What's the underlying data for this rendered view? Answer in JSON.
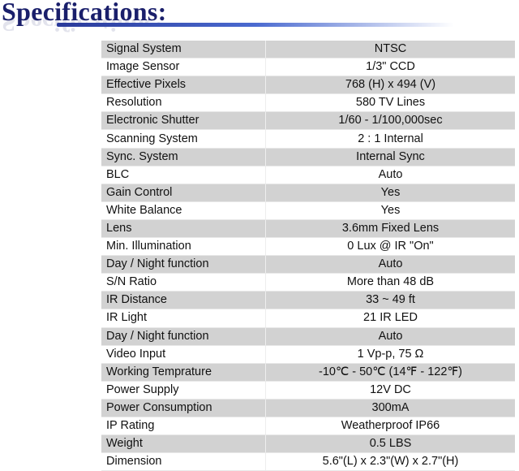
{
  "title": "Specifications:",
  "rows": [
    [
      "Signal System",
      "NTSC"
    ],
    [
      "Image Sensor",
      "1/3\" CCD"
    ],
    [
      "Effective Pixels",
      "768 (H) x 494 (V)"
    ],
    [
      "Resolution",
      "580 TV Lines"
    ],
    [
      "Electronic Shutter",
      "1/60 - 1/100,000sec"
    ],
    [
      "Scanning System",
      "2 : 1 Internal"
    ],
    [
      "Sync. System",
      "Internal Sync"
    ],
    [
      "BLC",
      "Auto"
    ],
    [
      "Gain Control",
      "Yes"
    ],
    [
      "White Balance",
      "Yes"
    ],
    [
      "Lens",
      "3.6mm Fixed Lens"
    ],
    [
      "Min. Illumination",
      "0 Lux @ IR \"On\""
    ],
    [
      "Day / Night function",
      "Auto"
    ],
    [
      "S/N Ratio",
      "More than 48 dB"
    ],
    [
      "IR Distance",
      "33 ~ 49 ft"
    ],
    [
      "IR Light",
      "21 IR LED"
    ],
    [
      "Day / Night function",
      "Auto"
    ],
    [
      "Video Input",
      "1 Vp-p, 75 Ω"
    ],
    [
      "Working Temprature",
      "-10℃ - 50℃ (14℉ - 122℉)"
    ],
    [
      "Power Supply",
      "12V DC"
    ],
    [
      "Power Consumption",
      "300mA"
    ],
    [
      "IP Rating",
      "Weatherproof IP66"
    ],
    [
      "Weight",
      "0.5 LBS"
    ],
    [
      "Dimension",
      "5.6\"(L) x 2.3\"(W) x 2.7\"(H)"
    ]
  ]
}
